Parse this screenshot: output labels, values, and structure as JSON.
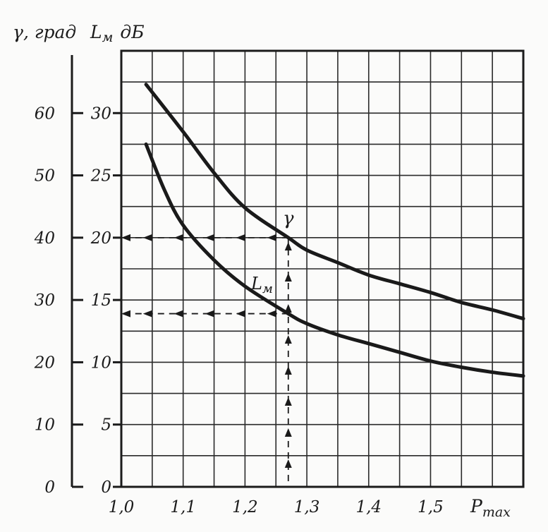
{
  "chart_data": {
    "type": "line",
    "header": {
      "gamma_label": "γ, град",
      "lm_label": "L",
      "lm_sub": "м",
      "lm_unit": "дБ"
    },
    "xlabel": "P",
    "xlabel_sub": "max",
    "xlim": [
      1.0,
      1.65
    ],
    "x_ticks": [
      {
        "value": 1.0,
        "label": "1,0"
      },
      {
        "value": 1.1,
        "label": "1,1"
      },
      {
        "value": 1.2,
        "label": "1,2"
      },
      {
        "value": 1.3,
        "label": "1,3"
      },
      {
        "value": 1.4,
        "label": "1,4"
      },
      {
        "value": 1.5,
        "label": "1,5"
      }
    ],
    "lm_axis": {
      "ylim": [
        0,
        35
      ],
      "ticks": [
        {
          "value": 0,
          "label": "0"
        },
        {
          "value": 5,
          "label": "5"
        },
        {
          "value": 10,
          "label": "10"
        },
        {
          "value": 15,
          "label": "15"
        },
        {
          "value": 20,
          "label": "20"
        },
        {
          "value": 25,
          "label": "25"
        },
        {
          "value": 30,
          "label": "30"
        }
      ]
    },
    "gamma_axis": {
      "ylim": [
        0,
        70
      ],
      "ticks": [
        {
          "value": 0,
          "label": "0"
        },
        {
          "value": 10,
          "label": "10"
        },
        {
          "value": 20,
          "label": "20"
        },
        {
          "value": 30,
          "label": "30"
        },
        {
          "value": 40,
          "label": "40"
        },
        {
          "value": 50,
          "label": "50"
        },
        {
          "value": 60,
          "label": "60"
        }
      ]
    },
    "grid": true,
    "series": [
      {
        "name": "γ",
        "x": [
          1.04,
          1.1,
          1.15,
          1.2,
          1.27,
          1.3,
          1.35,
          1.4,
          1.45,
          1.5,
          1.55,
          1.6,
          1.65
        ],
        "y": [
          32.3,
          28.5,
          25.2,
          22.4,
          20.0,
          19.0,
          18.0,
          17.0,
          16.3,
          15.6,
          14.8,
          14.2,
          13.5
        ]
      },
      {
        "name": "L",
        "name_sub": "м",
        "x": [
          1.04,
          1.07,
          1.1,
          1.15,
          1.2,
          1.27,
          1.3,
          1.35,
          1.4,
          1.45,
          1.5,
          1.55,
          1.6,
          1.65
        ],
        "y": [
          27.5,
          23.8,
          21.0,
          18.2,
          16.1,
          13.9,
          13.1,
          12.2,
          11.5,
          10.8,
          10.1,
          9.6,
          9.2,
          8.9
        ]
      }
    ],
    "annotations": [
      {
        "series": "γ",
        "x": 1.27,
        "lm_value": 20
      },
      {
        "series": "L",
        "x": 1.27,
        "lm_value": 13.9
      }
    ]
  }
}
